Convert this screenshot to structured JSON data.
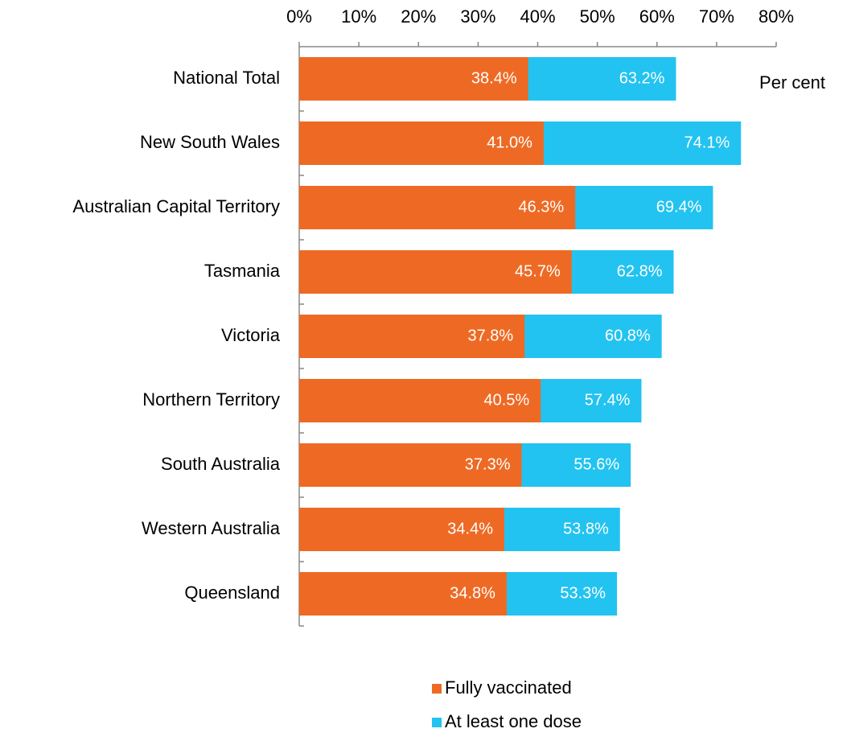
{
  "chart_data": {
    "type": "bar",
    "orientation": "horizontal",
    "categories": [
      "National Total",
      "New South Wales",
      "Australian Capital Territory",
      "Tasmania",
      "Victoria",
      "Northern Territory",
      "South Australia",
      "Western Australia",
      "Queensland"
    ],
    "series": [
      {
        "name": "Fully vaccinated",
        "color": "#ee6a24",
        "values": [
          38.4,
          41.0,
          46.3,
          45.7,
          37.8,
          40.5,
          37.3,
          34.4,
          34.8
        ],
        "value_labels": [
          "38.4%",
          "41.0%",
          "46.3%",
          "45.7%",
          "37.8%",
          "40.5%",
          "37.3%",
          "34.4%",
          "34.8%"
        ]
      },
      {
        "name": "At least one dose",
        "color": "#22c3f0",
        "values": [
          63.2,
          74.1,
          69.4,
          62.8,
          60.8,
          57.4,
          55.6,
          53.8,
          53.3
        ],
        "value_labels": [
          "63.2%",
          "74.1%",
          "69.4%",
          "62.8%",
          "60.8%",
          "57.4%",
          "55.6%",
          "53.8%",
          "53.3%"
        ]
      }
    ],
    "xlabel": "Per cent",
    "xlim": [
      0,
      80
    ],
    "xticks": [
      {
        "value": 0,
        "label": "0%"
      },
      {
        "value": 10,
        "label": "10%"
      },
      {
        "value": 20,
        "label": "20%"
      },
      {
        "value": 30,
        "label": "30%"
      },
      {
        "value": 40,
        "label": "40%"
      },
      {
        "value": 50,
        "label": "50%"
      },
      {
        "value": 60,
        "label": "60%"
      },
      {
        "value": 70,
        "label": "70%"
      },
      {
        "value": 80,
        "label": "80%"
      }
    ],
    "xaxis_position": "top",
    "legend": "bottom",
    "grid": false
  }
}
